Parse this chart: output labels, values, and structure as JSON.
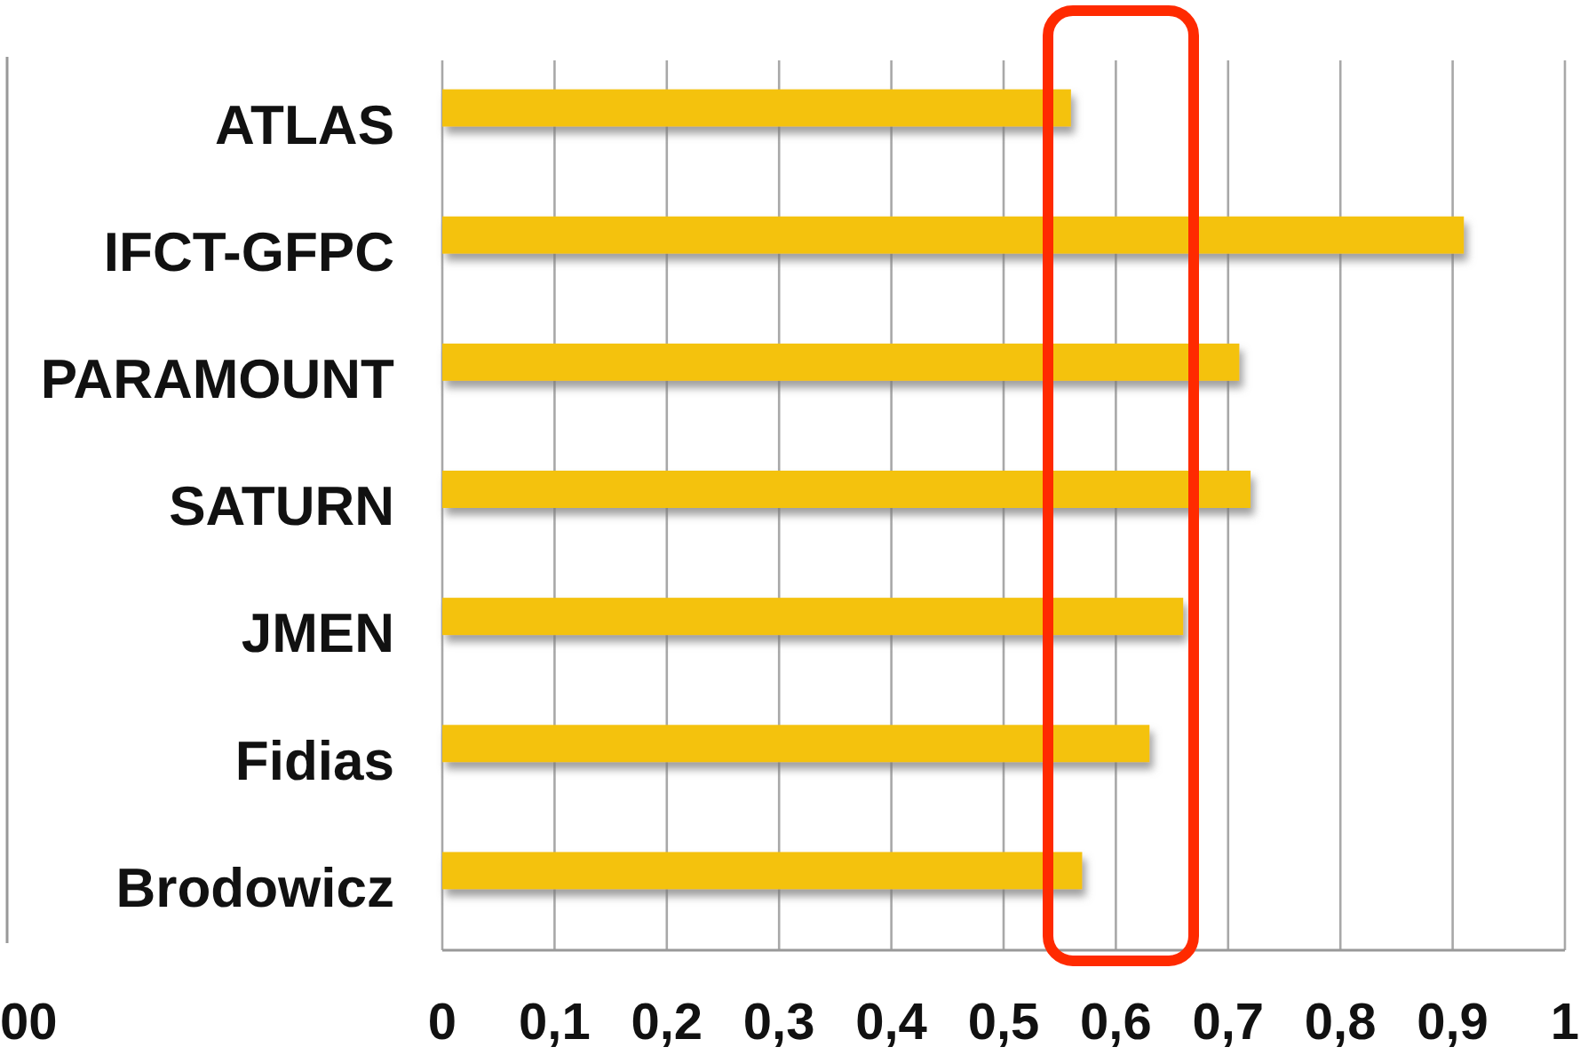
{
  "chart_data": {
    "type": "bar",
    "orientation": "horizontal",
    "categories": [
      "ATLAS",
      "IFCT-GFPC",
      "PARAMOUNT",
      "SATURN",
      "JMEN",
      "Fidias",
      "Brodowicz"
    ],
    "values": [
      0.56,
      0.91,
      0.71,
      0.72,
      0.66,
      0.63,
      0.57
    ],
    "color": "#f4c20d",
    "xlim": [
      0,
      1
    ],
    "xticks": [
      0,
      {
        "value": 0.1,
        "label": "0,1"
      },
      {
        "value": 0.2,
        "label": "0,2"
      },
      {
        "value": 0.3,
        "label": "0,3"
      },
      {
        "value": 0.4,
        "label": "0,4"
      },
      {
        "value": 0.5,
        "label": "0,5"
      },
      {
        "value": 0.6,
        "label": "0,6"
      },
      {
        "value": 0.7,
        "label": "0,7"
      },
      {
        "value": 0.8,
        "label": "0,8"
      },
      {
        "value": 0.9,
        "label": "0,9"
      },
      1
    ],
    "grid": "x",
    "annotations": [
      "00"
    ]
  }
}
